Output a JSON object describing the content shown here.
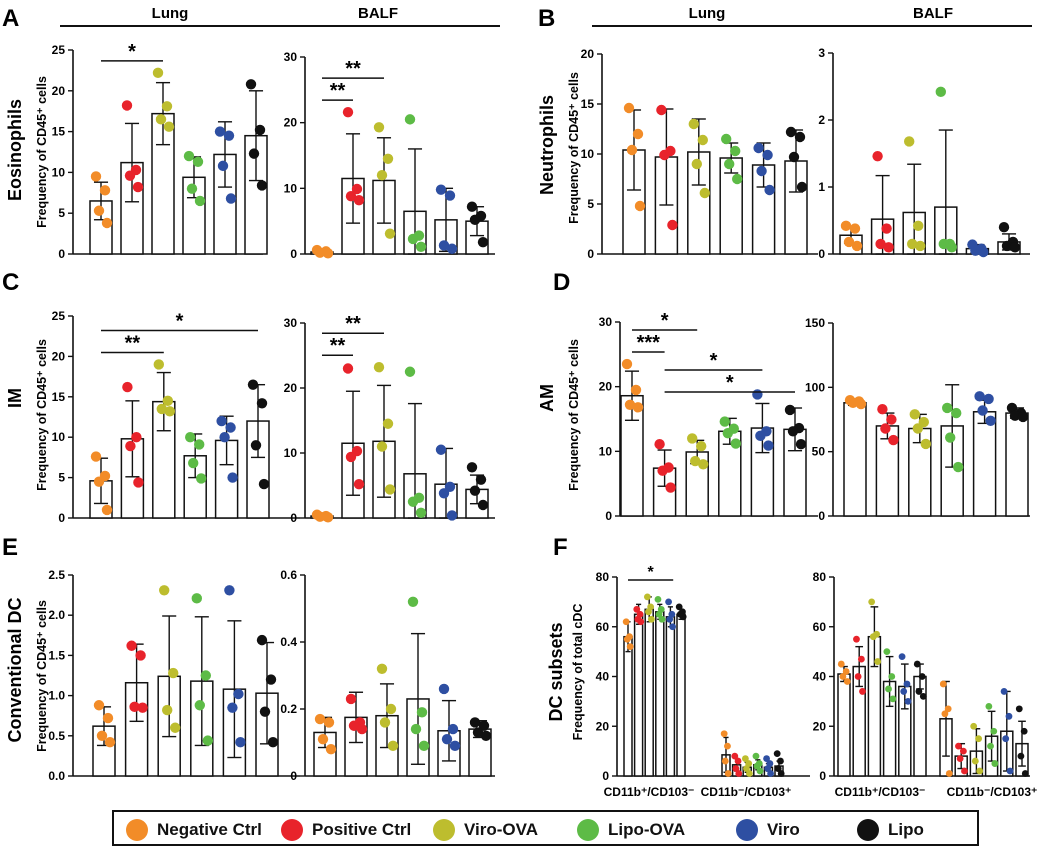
{
  "colors": {
    "neg": "#F28C28",
    "pos": "#E8232B",
    "viro_ova": "#BDBD2E",
    "lipo_ova": "#5DBB46",
    "viro": "#2E4FA2",
    "lipo": "#111111"
  },
  "legend": [
    {
      "label": "Negative Ctrl",
      "color_key": "neg"
    },
    {
      "label": "Positive Ctrl",
      "color_key": "pos"
    },
    {
      "label": "Viro-OVA",
      "color_key": "viro_ova"
    },
    {
      "label": "Lipo-OVA",
      "color_key": "lipo_ova"
    },
    {
      "label": "Viro",
      "color_key": "viro"
    },
    {
      "label": "Lipo",
      "color_key": "lipo"
    }
  ],
  "panels": [
    {
      "letter": "A",
      "cell_type": "Eosinophils",
      "ylabel": "Frequency of CD45⁺ cells",
      "left_header": "Lung",
      "right_header": "BALF"
    },
    {
      "letter": "B",
      "cell_type": "Neutrophils",
      "ylabel": "Frequency of CD45⁺ cells",
      "left_header": "Lung",
      "right_header": "BALF"
    },
    {
      "letter": "C",
      "cell_type": "IM",
      "ylabel": "Frequency of CD45⁺ cells"
    },
    {
      "letter": "D",
      "cell_type": "AM",
      "ylabel": "Frequency of CD45⁺ cells"
    },
    {
      "letter": "E",
      "cell_type": "Conventional DC",
      "ylabel": "Frequency of CD45⁺ cells"
    },
    {
      "letter": "F",
      "cell_type": "DC subsets",
      "ylabel": "Frequency of total cDC"
    }
  ],
  "chart_data": [
    {
      "id": "A_lung",
      "type": "bar",
      "panel": "A",
      "tissue": "Lung",
      "ylim": [
        0,
        25
      ],
      "yticks": [
        "0",
        "5",
        "10",
        "15",
        "20",
        "25"
      ],
      "means": [
        6.5,
        11.2,
        17.2,
        9.4,
        12.2,
        14.5
      ],
      "errors": [
        2.3,
        4.8,
        3.8,
        2.5,
        4.0,
        5.5
      ],
      "points": [
        [
          9.5,
          7.8,
          5.3,
          3.8
        ],
        [
          18.2,
          10.3,
          9.6,
          8.2
        ],
        [
          22.2,
          18.1,
          16.5,
          15.6
        ],
        [
          12.0,
          11.3,
          8.0,
          6.5
        ],
        [
          15.0,
          14.5,
          10.8,
          6.8
        ],
        [
          20.8,
          15.2,
          12.3,
          8.4
        ]
      ],
      "sig": [
        {
          "from": 0,
          "to": 2,
          "label": "*"
        }
      ]
    },
    {
      "id": "A_balf",
      "type": "bar",
      "panel": "A",
      "tissue": "BALF",
      "ylim": [
        0,
        30
      ],
      "yticks": [
        "0",
        "10",
        "20",
        "30"
      ],
      "means": [
        0.3,
        11.5,
        11.2,
        6.5,
        5.2,
        5.0
      ],
      "errors": [
        0.2,
        6.8,
        6.5,
        9.5,
        4.8,
        2.2
      ],
      "points": [
        [
          0.6,
          0.4,
          0.2,
          0.1
        ],
        [
          21.6,
          9.9,
          8.8,
          8.2
        ],
        [
          19.3,
          14.5,
          12.0,
          3.1
        ],
        [
          20.5,
          2.8,
          2.3,
          1.1
        ],
        [
          9.8,
          8.9,
          1.3,
          0.8
        ],
        [
          7.2,
          5.8,
          5.2,
          1.8
        ]
      ],
      "sig": [
        {
          "from": 0,
          "to": 1,
          "label": "**"
        },
        {
          "from": 0,
          "to": 2,
          "label": "**"
        }
      ]
    },
    {
      "id": "B_lung",
      "type": "bar",
      "panel": "B",
      "tissue": "Lung",
      "ylim": [
        0,
        20
      ],
      "yticks": [
        "0",
        "5",
        "10",
        "15",
        "20"
      ],
      "means": [
        10.4,
        9.7,
        10.2,
        9.6,
        8.9,
        9.3
      ],
      "errors": [
        4.0,
        4.8,
        3.3,
        1.5,
        2.2,
        3.1
      ],
      "points": [
        [
          14.6,
          12.0,
          10.4,
          4.8
        ],
        [
          14.4,
          10.3,
          9.9,
          2.9
        ],
        [
          13.0,
          11.4,
          9.0,
          6.1
        ],
        [
          11.5,
          10.3,
          9.0,
          7.5
        ],
        [
          10.6,
          9.9,
          8.3,
          6.4
        ],
        [
          12.2,
          11.7,
          9.7,
          6.7
        ]
      ],
      "sig": []
    },
    {
      "id": "B_balf",
      "type": "bar",
      "panel": "B",
      "tissue": "BALF",
      "ylim": [
        0,
        3
      ],
      "yticks": [
        "0",
        "1",
        "2",
        "3"
      ],
      "means": [
        0.28,
        0.52,
        0.62,
        0.7,
        0.08,
        0.18
      ],
      "errors": [
        0.12,
        0.65,
        0.72,
        1.15,
        0.06,
        0.12
      ],
      "points": [
        [
          0.42,
          0.38,
          0.18,
          0.12
        ],
        [
          1.46,
          0.38,
          0.15,
          0.1
        ],
        [
          1.68,
          0.42,
          0.15,
          0.12
        ],
        [
          2.42,
          0.15,
          0.15,
          0.1
        ],
        [
          0.14,
          0.08,
          0.05,
          0.03
        ],
        [
          0.4,
          0.18,
          0.12,
          0.1
        ]
      ],
      "sig": []
    },
    {
      "id": "C_lung",
      "type": "bar",
      "panel": "C",
      "tissue": "Lung",
      "ylim": [
        0,
        25
      ],
      "yticks": [
        "0",
        "5",
        "10",
        "15",
        "20",
        "25"
      ],
      "means": [
        4.6,
        9.8,
        14.4,
        7.7,
        9.6,
        12.0
      ],
      "errors": [
        2.8,
        4.7,
        3.6,
        2.7,
        3.0,
        4.5
      ],
      "points": [
        [
          7.6,
          5.2,
          4.5,
          1.0
        ],
        [
          16.2,
          10.0,
          8.9,
          4.4
        ],
        [
          19.0,
          14.5,
          13.5,
          13.2
        ],
        [
          10.0,
          9.1,
          6.8,
          4.9
        ],
        [
          12.0,
          11.2,
          10.0,
          5.0
        ],
        [
          16.5,
          14.2,
          9.0,
          4.2
        ]
      ],
      "sig": [
        {
          "from": 0,
          "to": 2,
          "label": "**"
        },
        {
          "from": 0,
          "to": 5,
          "label": "*"
        }
      ]
    },
    {
      "id": "C_balf",
      "type": "bar",
      "panel": "C",
      "tissue": "BALF",
      "ylim": [
        0,
        30
      ],
      "yticks": [
        "0",
        "10",
        "20",
        "30"
      ],
      "means": [
        0.3,
        11.5,
        11.8,
        6.8,
        5.2,
        4.4
      ],
      "errors": [
        0.2,
        8.0,
        8.6,
        10.8,
        5.5,
        2.2
      ],
      "points": [
        [
          0.5,
          0.3,
          0.2,
          0.1
        ],
        [
          23.0,
          10.3,
          9.4,
          5.2
        ],
        [
          23.2,
          14.5,
          11.0,
          4.4
        ],
        [
          22.5,
          3.1,
          2.5,
          0.8
        ],
        [
          10.5,
          4.8,
          3.8,
          0.4
        ],
        [
          7.8,
          5.9,
          4.2,
          2.0
        ]
      ],
      "sig": [
        {
          "from": 0,
          "to": 1,
          "label": "**"
        },
        {
          "from": 0,
          "to": 2,
          "label": "**"
        }
      ]
    },
    {
      "id": "D_lung",
      "type": "bar",
      "panel": "D",
      "tissue": "Lung",
      "ylim": [
        0,
        30
      ],
      "yticks": [
        "0",
        "10",
        "20",
        "30"
      ],
      "means": [
        18.6,
        7.4,
        9.9,
        13.1,
        13.6,
        13.4
      ],
      "errors": [
        3.8,
        2.8,
        1.8,
        2.0,
        3.8,
        3.3
      ],
      "points": [
        [
          23.5,
          19.5,
          17.2,
          16.8
        ],
        [
          11.1,
          7.5,
          7.0,
          4.4
        ],
        [
          12.0,
          10.8,
          8.5,
          8.0
        ],
        [
          14.6,
          13.5,
          12.8,
          11.2
        ],
        [
          18.8,
          13.1,
          12.4,
          10.9
        ],
        [
          16.4,
          13.6,
          13.1,
          11.1
        ]
      ],
      "sig": [
        {
          "from": 0,
          "to": 1,
          "label": "***"
        },
        {
          "from": 0,
          "to": 2,
          "label": "*"
        },
        {
          "from": 1,
          "to": 4,
          "label": "*"
        },
        {
          "from": 1,
          "to": 5,
          "label": "*"
        }
      ]
    },
    {
      "id": "D_balf",
      "type": "bar",
      "panel": "D",
      "tissue": "BALF",
      "ylim": [
        0,
        150
      ],
      "yticks": [
        "0",
        "50",
        "100",
        "150"
      ],
      "means": [
        88,
        70,
        68,
        70,
        81,
        80
      ],
      "errors": [
        2,
        10,
        11,
        32,
        9,
        4
      ],
      "points": [
        [
          90,
          89,
          88,
          87
        ],
        [
          83,
          75,
          68,
          59
        ],
        [
          79,
          73,
          68,
          56
        ],
        [
          84,
          80,
          61,
          38
        ],
        [
          93,
          91,
          82,
          74
        ],
        [
          84,
          80,
          78,
          77
        ]
      ],
      "sig": []
    },
    {
      "id": "E_lung",
      "type": "bar",
      "panel": "E",
      "tissue": "Lung",
      "ylim": [
        0,
        2.5
      ],
      "yticks": [
        "0.0",
        "0.5",
        "1.0",
        "1.5",
        "2.0",
        "2.5"
      ],
      "means": [
        0.62,
        1.16,
        1.24,
        1.18,
        1.08,
        1.03
      ],
      "errors": [
        0.24,
        0.48,
        0.75,
        0.8,
        0.85,
        0.63
      ],
      "points": [
        [
          0.88,
          0.72,
          0.5,
          0.42
        ],
        [
          1.62,
          1.5,
          0.86,
          0.85
        ],
        [
          2.31,
          1.28,
          0.82,
          0.6
        ],
        [
          2.21,
          1.25,
          0.88,
          0.44
        ],
        [
          2.31,
          1.02,
          0.85,
          0.42
        ],
        [
          1.69,
          1.2,
          0.8,
          0.42
        ]
      ],
      "sig": []
    },
    {
      "id": "E_balf",
      "type": "bar",
      "panel": "E",
      "tissue": "BALF",
      "ylim": [
        0,
        0.6
      ],
      "yticks": [
        "0",
        "0.2",
        "0.4",
        "0.6"
      ],
      "means": [
        0.13,
        0.175,
        0.18,
        0.23,
        0.135,
        0.14
      ],
      "errors": [
        0.045,
        0.075,
        0.095,
        0.195,
        0.09,
        0.025
      ],
      "points": [
        [
          0.17,
          0.16,
          0.11,
          0.08
        ],
        [
          0.23,
          0.16,
          0.15,
          0.14
        ],
        [
          0.32,
          0.2,
          0.16,
          0.09
        ],
        [
          0.52,
          0.19,
          0.14,
          0.09
        ],
        [
          0.26,
          0.14,
          0.11,
          0.09
        ],
        [
          0.16,
          0.15,
          0.13,
          0.12
        ]
      ],
      "sig": []
    },
    {
      "id": "F_left",
      "type": "grouped_bar",
      "panel": "F",
      "ylim": [
        0,
        80
      ],
      "yticks": [
        "0",
        "20",
        "40",
        "60",
        "80"
      ],
      "categories": [
        "CD11b⁺/CD103⁻",
        "CD11b⁻/CD103⁺"
      ],
      "means": [
        [
          56,
          65,
          67,
          66,
          64,
          65
        ],
        [
          8.5,
          4.5,
          3.5,
          4.5,
          3.5,
          4.0
        ]
      ],
      "errors": [
        [
          6,
          4,
          5,
          3,
          4,
          2
        ],
        [
          7,
          2.5,
          2,
          2,
          1.5,
          2
        ]
      ],
      "points": [
        [
          [
            62,
            56,
            55,
            52
          ],
          [
            67,
            65,
            63,
            62
          ],
          [
            72,
            68,
            66,
            63
          ],
          [
            71,
            67,
            65,
            63
          ],
          [
            70,
            65,
            63,
            60
          ],
          [
            68,
            66,
            65,
            64
          ]
        ],
        [
          [
            17,
            12,
            6,
            1
          ],
          [
            8,
            6,
            3,
            1
          ],
          [
            7,
            5,
            3,
            1
          ],
          [
            8,
            5,
            4,
            2
          ],
          [
            7,
            5,
            3,
            1
          ],
          [
            9,
            6,
            3,
            1
          ]
        ]
      ],
      "sig": [
        {
          "from": 0,
          "to": 2,
          "label": "*"
        }
      ]
    },
    {
      "id": "F_right",
      "type": "grouped_bar",
      "panel": "F",
      "ylim": [
        0,
        80
      ],
      "yticks": [
        "0",
        "20",
        "40",
        "60",
        "80"
      ],
      "categories": [
        "CD11b⁺/CD103⁻",
        "CD11b⁻/CD103⁺"
      ],
      "means": [
        [
          41,
          44,
          56,
          38,
          36,
          40
        ],
        [
          23,
          8,
          10,
          16,
          18,
          13
        ]
      ],
      "errors": [
        [
          3,
          8,
          12,
          10,
          9,
          5
        ],
        [
          15,
          5,
          9,
          10,
          16,
          9
        ]
      ],
      "points": [
        [
          [
            45,
            42,
            40,
            38
          ],
          [
            55,
            47,
            40,
            34
          ],
          [
            70,
            57,
            56,
            46
          ],
          [
            50,
            40,
            35,
            31
          ],
          [
            48,
            37,
            34,
            30
          ],
          [
            45,
            40,
            34,
            32
          ]
        ],
        [
          [
            37,
            27,
            25,
            1
          ],
          [
            12,
            10,
            7,
            2
          ],
          [
            20,
            15,
            6,
            2
          ],
          [
            28,
            18,
            12,
            5
          ],
          [
            34,
            24,
            15,
            2
          ],
          [
            27,
            18,
            8,
            1
          ]
        ]
      ],
      "sig": []
    }
  ]
}
